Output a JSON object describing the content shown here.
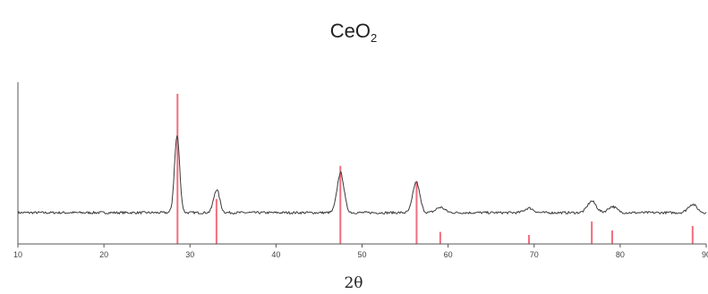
{
  "chart_data": {
    "type": "line",
    "title_main": "CeO",
    "title_sub": "2",
    "xlabel": "2θ",
    "ylabel": "",
    "xlim": [
      10,
      90
    ],
    "x_ticks": [
      10,
      20,
      30,
      40,
      50,
      60,
      70,
      80,
      90
    ],
    "y_ticks": [],
    "grid": false,
    "colors": {
      "pattern": "#3a3a3a",
      "reference": "#f26d7d",
      "axis": "#555555"
    },
    "pattern_peaks": [
      {
        "two_theta": 28.5,
        "intensity": 100,
        "width": 0.3
      },
      {
        "two_theta": 33.1,
        "intensity": 30,
        "width": 0.35
      },
      {
        "two_theta": 47.5,
        "intensity": 52,
        "width": 0.4
      },
      {
        "two_theta": 56.3,
        "intensity": 40,
        "width": 0.4
      },
      {
        "two_theta": 59.1,
        "intensity": 7,
        "width": 0.5
      },
      {
        "two_theta": 69.4,
        "intensity": 6,
        "width": 0.5
      },
      {
        "two_theta": 76.7,
        "intensity": 15,
        "width": 0.5
      },
      {
        "two_theta": 79.1,
        "intensity": 8,
        "width": 0.5
      },
      {
        "two_theta": 88.4,
        "intensity": 11,
        "width": 0.5
      }
    ],
    "reference_peaks": [
      {
        "two_theta": 28.55,
        "intensity": 100
      },
      {
        "two_theta": 33.08,
        "intensity": 30
      },
      {
        "two_theta": 47.48,
        "intensity": 52
      },
      {
        "two_theta": 56.34,
        "intensity": 42
      },
      {
        "two_theta": 59.09,
        "intensity": 8
      },
      {
        "two_theta": 69.4,
        "intensity": 6
      },
      {
        "two_theta": 76.7,
        "intensity": 15
      },
      {
        "two_theta": 79.07,
        "intensity": 9
      },
      {
        "two_theta": 88.42,
        "intensity": 12
      }
    ]
  }
}
